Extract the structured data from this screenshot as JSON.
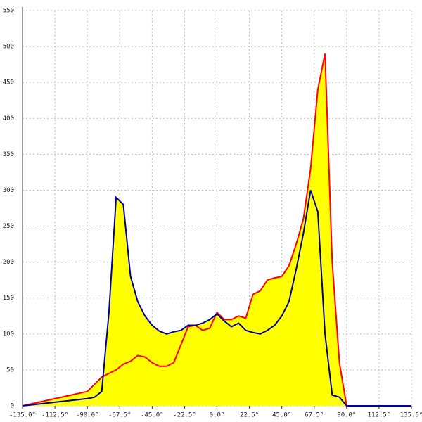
{
  "chart_data": {
    "type": "area",
    "x": [
      -135,
      -90,
      -85,
      -80,
      -75,
      -70,
      -65,
      -60,
      -55,
      -50,
      -45,
      -40,
      -35,
      -30,
      -25,
      -20,
      -15,
      -10,
      -5,
      0,
      5,
      10,
      15,
      20,
      25,
      30,
      35,
      40,
      45,
      50,
      55,
      60,
      65,
      70,
      75,
      80,
      85,
      90,
      135
    ],
    "series": [
      {
        "color": "#ff0000",
        "fill": "#ffff00",
        "values": [
          0,
          20,
          30,
          40,
          45,
          50,
          58,
          62,
          70,
          68,
          60,
          55,
          55,
          60,
          85,
          110,
          112,
          105,
          108,
          130,
          120,
          120,
          125,
          122,
          155,
          160,
          175,
          178,
          180,
          195,
          225,
          260,
          330,
          440,
          490,
          200,
          60,
          0,
          0
        ]
      },
      {
        "color": "#0000aa",
        "fill": "#ffff00",
        "values": [
          0,
          10,
          12,
          20,
          130,
          290,
          280,
          180,
          145,
          125,
          112,
          104,
          100,
          103,
          105,
          112,
          112,
          115,
          120,
          128,
          118,
          110,
          115,
          105,
          102,
          100,
          105,
          112,
          125,
          145,
          190,
          240,
          300,
          270,
          100,
          15,
          12,
          0,
          0
        ]
      }
    ],
    "xlim": [
      -135,
      135
    ],
    "ylim": [
      0,
      550
    ],
    "xticks": [
      {
        "value": -135,
        "label": "-135.0°"
      },
      {
        "value": -112.5,
        "label": "-112.5°"
      },
      {
        "value": -90,
        "label": "-90.0°"
      },
      {
        "value": -67.5,
        "label": "-67.5°"
      },
      {
        "value": -45,
        "label": "-45.0°"
      },
      {
        "value": -22.5,
        "label": "-22.5°"
      },
      {
        "value": 0,
        "label": "0.0°"
      },
      {
        "value": 22.5,
        "label": "22.5°"
      },
      {
        "value": 45,
        "label": "45.0°"
      },
      {
        "value": 67.5,
        "label": "67.5°"
      },
      {
        "value": 90,
        "label": "90.0°"
      },
      {
        "value": 112.5,
        "label": "112.5°"
      },
      {
        "value": 135,
        "label": "135.0°"
      }
    ],
    "yticks": [
      0,
      50,
      100,
      150,
      200,
      250,
      300,
      350,
      400,
      450,
      500,
      550
    ],
    "grid": true
  }
}
